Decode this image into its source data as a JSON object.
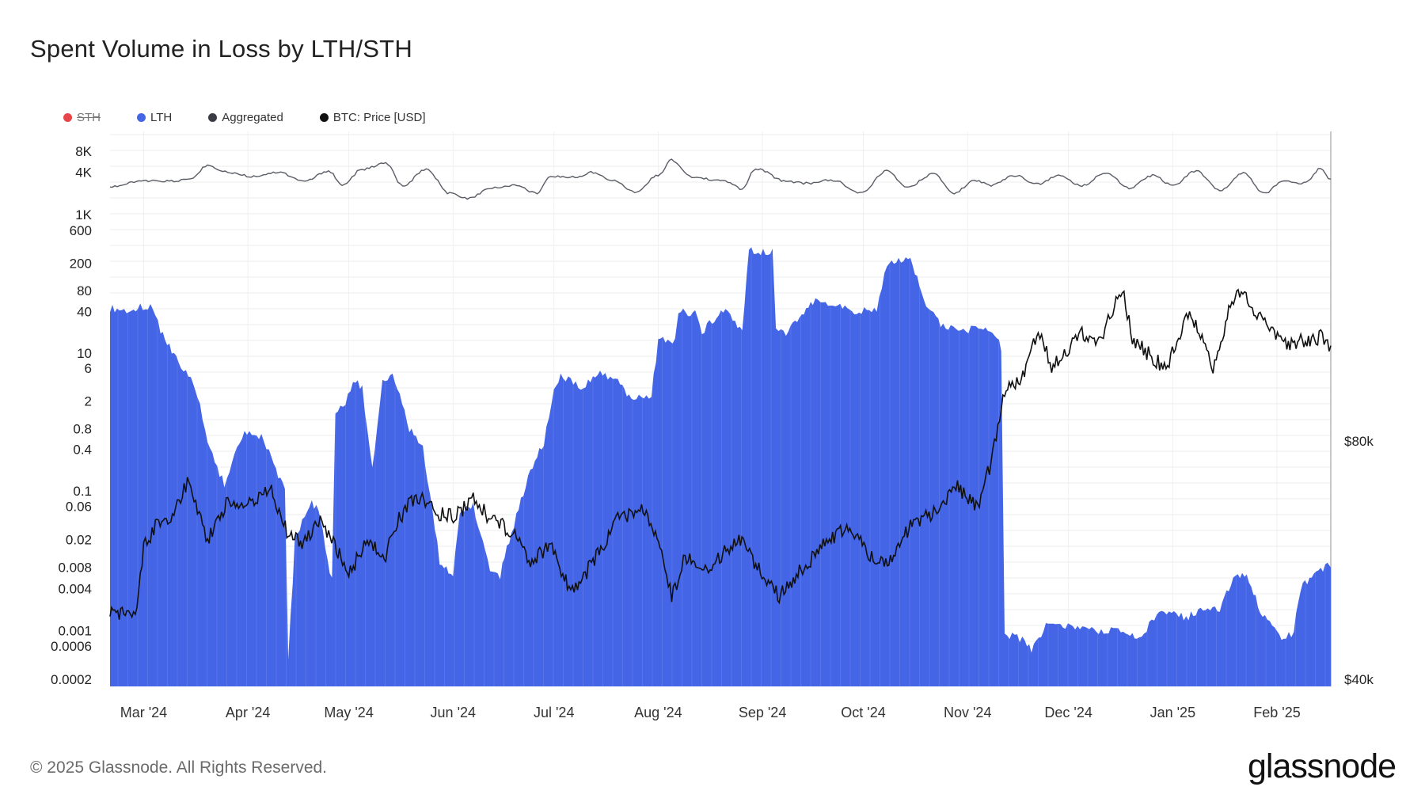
{
  "header": {
    "title": "Spent Volume in Loss by LTH/STH"
  },
  "legend": [
    {
      "label": "STH",
      "color": "#e8454b",
      "hidden": true
    },
    {
      "label": "LTH",
      "color": "#4465e6",
      "hidden": false
    },
    {
      "label": "Aggregated",
      "color": "#3a3d45",
      "hidden": false
    },
    {
      "label": "BTC: Price [USD]",
      "color": "#111111",
      "hidden": false
    }
  ],
  "footer": {
    "copyright": "© 2025 Glassnode. All Rights Reserved.",
    "brand": "glassnode"
  },
  "chart_data": {
    "type": "area",
    "title": "Spent Volume in Loss by LTH/STH",
    "x_range": [
      "2024-02-20",
      "2025-02-17"
    ],
    "x_ticks": [
      "Mar '24",
      "Apr '24",
      "May '24",
      "Jun '24",
      "Jul '24",
      "Aug '24",
      "Sep '24",
      "Oct '24",
      "Nov '24",
      "Dec '24",
      "Jan '25",
      "Feb '25"
    ],
    "x_tick_dates": [
      "2024-03-01",
      "2024-04-01",
      "2024-05-01",
      "2024-06-01",
      "2024-07-01",
      "2024-08-01",
      "2024-09-01",
      "2024-10-01",
      "2024-11-01",
      "2024-12-01",
      "2025-01-01",
      "2025-02-01"
    ],
    "y_left": {
      "scale": "log",
      "ticks": [
        "8K",
        "4K",
        "1K",
        "600",
        "200",
        "80",
        "40",
        "10",
        "6",
        "2",
        "0.8",
        "0.4",
        "0.1",
        "0.06",
        "0.02",
        "0.008",
        "0.004",
        "0.001",
        "0.0006",
        "0.0002"
      ]
    },
    "y_right": {
      "scale": "linear",
      "ticks": [
        "$80k",
        "$40k"
      ]
    },
    "grid": true,
    "legend_position": "top-left",
    "series": [
      {
        "name": "LTH",
        "color": "#4465e6",
        "type": "area",
        "points": [
          [
            "2024-02-20",
            45
          ],
          [
            "2024-02-27",
            40
          ],
          [
            "2024-02-29",
            48
          ],
          [
            "2024-03-03",
            48
          ],
          [
            "2024-03-06",
            22
          ],
          [
            "2024-03-10",
            9
          ],
          [
            "2024-03-15",
            4
          ],
          [
            "2024-03-17",
            2.5
          ],
          [
            "2024-03-20",
            0.5
          ],
          [
            "2024-03-25",
            0.12
          ],
          [
            "2024-03-28",
            0.35
          ],
          [
            "2024-03-31",
            0.7
          ],
          [
            "2024-04-05",
            0.6
          ],
          [
            "2024-04-08",
            0.3
          ],
          [
            "2024-04-12",
            0.1
          ],
          [
            "2024-04-13",
            0.0004
          ],
          [
            "2024-04-15",
            0.02
          ],
          [
            "2024-04-20",
            0.07
          ],
          [
            "2024-04-22",
            0.05
          ],
          [
            "2024-04-26",
            0.005
          ],
          [
            "2024-04-27",
            1.5
          ],
          [
            "2024-04-30",
            2
          ],
          [
            "2024-05-03",
            4
          ],
          [
            "2024-05-05",
            3
          ],
          [
            "2024-05-08",
            0.2
          ],
          [
            "2024-05-11",
            4
          ],
          [
            "2024-05-14",
            5
          ],
          [
            "2024-05-19",
            0.8
          ],
          [
            "2024-05-23",
            0.45
          ],
          [
            "2024-05-28",
            0.01
          ],
          [
            "2024-06-01",
            0.006
          ],
          [
            "2024-06-03",
            0.05
          ],
          [
            "2024-06-07",
            0.06
          ],
          [
            "2024-06-12",
            0.008
          ],
          [
            "2024-06-15",
            0.006
          ],
          [
            "2024-06-17",
            0.015
          ],
          [
            "2024-06-24",
            0.2
          ],
          [
            "2024-06-28",
            0.5
          ],
          [
            "2024-07-01",
            3
          ],
          [
            "2024-07-03",
            5
          ],
          [
            "2024-07-09",
            3
          ],
          [
            "2024-07-14",
            5
          ],
          [
            "2024-07-20",
            4
          ],
          [
            "2024-07-24",
            2
          ],
          [
            "2024-07-30",
            2.5
          ],
          [
            "2024-08-01",
            15
          ],
          [
            "2024-08-06",
            15
          ],
          [
            "2024-08-07",
            40
          ],
          [
            "2024-08-12",
            38
          ],
          [
            "2024-08-14",
            20
          ],
          [
            "2024-08-17",
            30
          ],
          [
            "2024-08-21",
            40
          ],
          [
            "2024-08-26",
            20
          ],
          [
            "2024-08-28",
            300
          ],
          [
            "2024-09-04",
            300
          ],
          [
            "2024-09-05",
            20
          ],
          [
            "2024-09-08",
            20
          ],
          [
            "2024-09-12",
            30
          ],
          [
            "2024-09-16",
            55
          ],
          [
            "2024-09-22",
            50
          ],
          [
            "2024-09-29",
            40
          ],
          [
            "2024-10-05",
            45
          ],
          [
            "2024-10-08",
            200
          ],
          [
            "2024-10-15",
            250
          ],
          [
            "2024-10-19",
            60
          ],
          [
            "2024-10-24",
            25
          ],
          [
            "2024-10-30",
            20
          ],
          [
            "2024-11-05",
            25
          ],
          [
            "2024-11-09",
            20
          ],
          [
            "2024-11-11",
            12
          ],
          [
            "2024-11-12",
            0.0009
          ],
          [
            "2024-11-18",
            0.0007
          ],
          [
            "2024-11-20",
            0.0005
          ],
          [
            "2024-11-25",
            0.0013
          ],
          [
            "2024-12-03",
            0.0011
          ],
          [
            "2024-12-10",
            0.001
          ],
          [
            "2024-12-18",
            0.001
          ],
          [
            "2024-12-22",
            0.0007
          ],
          [
            "2024-12-28",
            0.002
          ],
          [
            "2025-01-05",
            0.0015
          ],
          [
            "2025-01-10",
            0.0022
          ],
          [
            "2025-01-15",
            0.002
          ],
          [
            "2025-01-19",
            0.006
          ],
          [
            "2025-01-23",
            0.006
          ],
          [
            "2025-01-27",
            0.002
          ],
          [
            "2025-02-01",
            0.0009
          ],
          [
            "2025-02-03",
            0.0007
          ],
          [
            "2025-02-06",
            0.001
          ],
          [
            "2025-02-08",
            0.004
          ],
          [
            "2025-02-12",
            0.006
          ],
          [
            "2025-02-16",
            0.009
          ],
          [
            "2025-02-17",
            0.008
          ]
        ]
      },
      {
        "name": "Aggregated",
        "color": "#3a3d45",
        "type": "line",
        "points": [
          [
            "2024-02-20",
            2500
          ],
          [
            "2024-03-01",
            3000
          ],
          [
            "2024-03-10",
            3000
          ],
          [
            "2024-03-15",
            3200
          ],
          [
            "2024-03-20",
            5000
          ],
          [
            "2024-03-26",
            4000
          ],
          [
            "2024-04-02",
            3500
          ],
          [
            "2024-04-10",
            4000
          ],
          [
            "2024-04-18",
            3000
          ],
          [
            "2024-04-25",
            4200
          ],
          [
            "2024-04-29",
            2600
          ],
          [
            "2024-05-05",
            4400
          ],
          [
            "2024-05-12",
            5400
          ],
          [
            "2024-05-17",
            2600
          ],
          [
            "2024-05-24",
            4400
          ],
          [
            "2024-05-31",
            2000
          ],
          [
            "2024-06-06",
            1700
          ],
          [
            "2024-06-12",
            2400
          ],
          [
            "2024-06-20",
            2600
          ],
          [
            "2024-06-26",
            2000
          ],
          [
            "2024-06-30",
            3500
          ],
          [
            "2024-07-08",
            3400
          ],
          [
            "2024-07-12",
            4000
          ],
          [
            "2024-07-19",
            3000
          ],
          [
            "2024-07-25",
            2100
          ],
          [
            "2024-08-01",
            3600
          ],
          [
            "2024-08-05",
            6000
          ],
          [
            "2024-08-11",
            3400
          ],
          [
            "2024-08-21",
            3000
          ],
          [
            "2024-08-26",
            2300
          ],
          [
            "2024-08-30",
            4500
          ],
          [
            "2024-09-08",
            3000
          ],
          [
            "2024-09-14",
            2800
          ],
          [
            "2024-09-22",
            3100
          ],
          [
            "2024-09-30",
            2000
          ],
          [
            "2024-10-08",
            4200
          ],
          [
            "2024-10-14",
            2500
          ],
          [
            "2024-10-22",
            3800
          ],
          [
            "2024-10-28",
            2000
          ],
          [
            "2024-11-03",
            3100
          ],
          [
            "2024-11-08",
            2600
          ],
          [
            "2024-11-15",
            3600
          ],
          [
            "2024-11-22",
            2700
          ],
          [
            "2024-11-28",
            3600
          ],
          [
            "2024-12-05",
            2600
          ],
          [
            "2024-12-12",
            4000
          ],
          [
            "2024-12-19",
            2400
          ],
          [
            "2024-12-26",
            3600
          ],
          [
            "2025-01-01",
            2600
          ],
          [
            "2025-01-08",
            4200
          ],
          [
            "2025-01-15",
            2200
          ],
          [
            "2025-01-22",
            3900
          ],
          [
            "2025-01-28",
            2000
          ],
          [
            "2025-02-03",
            3000
          ],
          [
            "2025-02-09",
            2800
          ],
          [
            "2025-02-14",
            4500
          ],
          [
            "2025-02-17",
            3200
          ]
        ]
      },
      {
        "name": "BTC: Price [USD]",
        "color": "#111111",
        "type": "line",
        "axis": "right",
        "points": [
          [
            "2024-02-20",
            51500
          ],
          [
            "2024-02-25",
            51000
          ],
          [
            "2024-02-28",
            51200
          ],
          [
            "2024-03-01",
            62000
          ],
          [
            "2024-03-05",
            66000
          ],
          [
            "2024-03-10",
            68000
          ],
          [
            "2024-03-14",
            73000
          ],
          [
            "2024-03-18",
            67000
          ],
          [
            "2024-03-20",
            63500
          ],
          [
            "2024-03-26",
            70000
          ],
          [
            "2024-04-01",
            69500
          ],
          [
            "2024-04-08",
            71500
          ],
          [
            "2024-04-13",
            64000
          ],
          [
            "2024-04-18",
            63000
          ],
          [
            "2024-04-22",
            66500
          ],
          [
            "2024-04-25",
            64500
          ],
          [
            "2024-05-01",
            57500
          ],
          [
            "2024-05-06",
            63000
          ],
          [
            "2024-05-12",
            61000
          ],
          [
            "2024-05-15",
            66000
          ],
          [
            "2024-05-21",
            71000
          ],
          [
            "2024-05-27",
            68000
          ],
          [
            "2024-06-02",
            67500
          ],
          [
            "2024-06-07",
            70500
          ],
          [
            "2024-06-12",
            67000
          ],
          [
            "2024-06-18",
            65000
          ],
          [
            "2024-06-24",
            60000
          ],
          [
            "2024-06-30",
            62500
          ],
          [
            "2024-07-05",
            56000
          ],
          [
            "2024-07-08",
            55500
          ],
          [
            "2024-07-14",
            61000
          ],
          [
            "2024-07-20",
            67000
          ],
          [
            "2024-07-28",
            68500
          ],
          [
            "2024-08-02",
            62000
          ],
          [
            "2024-08-05",
            53500
          ],
          [
            "2024-08-09",
            60800
          ],
          [
            "2024-08-15",
            58000
          ],
          [
            "2024-08-25",
            64000
          ],
          [
            "2024-08-30",
            59000
          ],
          [
            "2024-09-06",
            53800
          ],
          [
            "2024-09-12",
            58000
          ],
          [
            "2024-09-20",
            63000
          ],
          [
            "2024-09-27",
            65800
          ],
          [
            "2024-10-03",
            60500
          ],
          [
            "2024-10-10",
            60000
          ],
          [
            "2024-10-15",
            66000
          ],
          [
            "2024-10-21",
            67500
          ],
          [
            "2024-10-29",
            72500
          ],
          [
            "2024-11-04",
            68500
          ],
          [
            "2024-11-08",
            76500
          ],
          [
            "2024-11-12",
            88000
          ],
          [
            "2024-11-17",
            90500
          ],
          [
            "2024-11-22",
            98500
          ],
          [
            "2024-11-26",
            92500
          ],
          [
            "2024-12-05",
            98000
          ],
          [
            "2024-12-10",
            96500
          ],
          [
            "2024-12-17",
            106000
          ],
          [
            "2024-12-20",
            97000
          ],
          [
            "2024-12-30",
            92000
          ],
          [
            "2025-01-06",
            102000
          ],
          [
            "2025-01-13",
            92500
          ],
          [
            "2025-01-20",
            106000
          ],
          [
            "2025-01-27",
            101000
          ],
          [
            "2025-02-03",
            96000
          ],
          [
            "2025-02-09",
            97000
          ],
          [
            "2025-02-14",
            97500
          ],
          [
            "2025-02-17",
            96000
          ]
        ]
      }
    ]
  }
}
